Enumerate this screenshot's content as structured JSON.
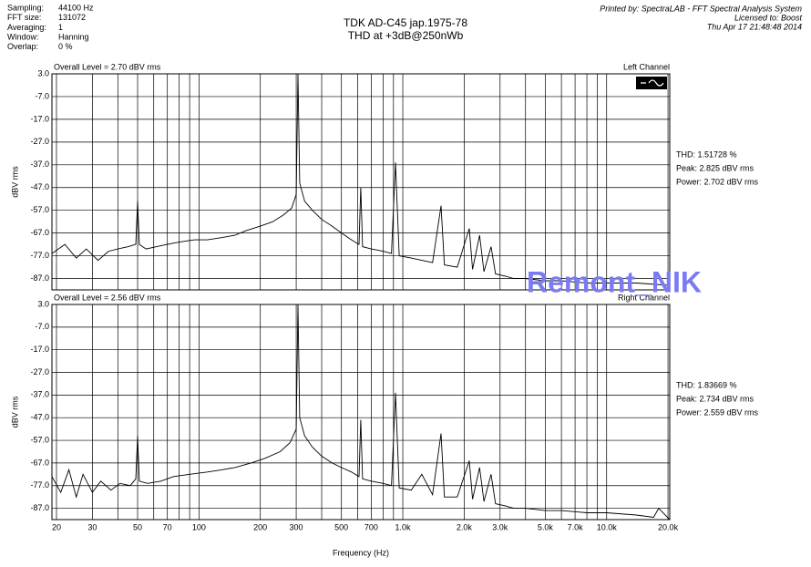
{
  "header": {
    "info": [
      [
        "Sampling:",
        "44100 Hz"
      ],
      [
        "FFT size:",
        "131072"
      ],
      [
        "Averaging:",
        "1"
      ],
      [
        "Window:",
        "Hanning"
      ],
      [
        "Overlap:",
        "0 %"
      ]
    ],
    "title": "TDK AD-C45 jap.1975-78",
    "subtitle": "THD at +3dB@250nWb",
    "printed_by": "Printed by: SpectraLAB - FFT Spectral Analysis System",
    "licensed_to": "Licensed to: Boost",
    "date": "Thu Apr 17 21:48:48 2014",
    "watermark": "Remont_NIK"
  },
  "chart_data": [
    {
      "type": "line",
      "overall_level": "Overall Level = 2.70 dBV rms",
      "channel": "Left Channel",
      "annotations": [
        "THD: 1.51728 %",
        "Peak: 2.825 dBV rms",
        "Power: 2.702 dBV rms"
      ],
      "ylabel": "dBV rms",
      "log_x": true,
      "grid": true,
      "color": "#000000",
      "xlim": [
        19,
        20400
      ],
      "ylim": [
        -92,
        3
      ],
      "xticks": [
        20,
        30,
        50,
        70,
        100,
        200,
        300,
        500,
        700,
        1000,
        2000,
        3000,
        5000,
        7000,
        10000,
        20000
      ],
      "xminor": [
        40,
        60,
        80,
        90,
        400,
        600,
        800,
        900,
        4000,
        6000,
        8000,
        9000
      ],
      "yticks": [
        {
          "value": 3,
          "label": "3.0"
        },
        {
          "value": -7,
          "label": "-7.0"
        },
        {
          "value": -17,
          "label": "-17.0"
        },
        {
          "value": -27,
          "label": "-27.0"
        },
        {
          "value": -37,
          "label": "-37.0"
        },
        {
          "value": -47,
          "label": "-47.0"
        },
        {
          "value": -57,
          "label": "-57.0"
        },
        {
          "value": -67,
          "label": "-67.0"
        },
        {
          "value": -77,
          "label": "-77.0"
        },
        {
          "value": -87,
          "label": "-87.0"
        }
      ],
      "x": [
        19,
        22,
        25,
        28,
        32,
        36,
        40,
        45,
        49,
        50,
        51,
        55,
        62,
        70,
        80,
        95,
        110,
        130,
        150,
        170,
        200,
        230,
        260,
        285,
        300,
        306,
        312,
        330,
        360,
        400,
        450,
        500,
        560,
        610,
        622,
        635,
        700,
        800,
        880,
        921,
        960,
        1100,
        1400,
        1540,
        1600,
        1850,
        2120,
        2200,
        2380,
        2500,
        2710,
        2850,
        3200,
        3500,
        4000,
        5000,
        6000,
        8000,
        10000,
        14000,
        20400
      ],
      "values": [
        -76,
        -72,
        -78,
        -74,
        -79,
        -75,
        -74,
        -73,
        -72,
        -53,
        -72,
        -74,
        -73,
        -72,
        -71,
        -70,
        -70,
        -69,
        -68,
        -66,
        -64,
        -62,
        -59,
        -56,
        -50,
        3,
        -45,
        -53,
        -57,
        -61,
        -64,
        -67,
        -70,
        -72,
        -47,
        -73,
        -74,
        -75,
        -76,
        -36,
        -77,
        -78,
        -80,
        -55,
        -81,
        -82,
        -65,
        -83,
        -68,
        -84,
        -73,
        -85,
        -86,
        -87,
        -87,
        -88,
        -88,
        -89,
        -89,
        -89,
        -90
      ]
    },
    {
      "type": "line",
      "overall_level": "Overall Level = 2.56 dBV rms",
      "channel": "Right Channel",
      "annotations": [
        "THD: 1.83669 %",
        "Peak: 2.734 dBV rms",
        "Power: 2.559 dBV rms"
      ],
      "ylabel": "dBV rms",
      "xlabel": "Frequency (Hz)",
      "log_x": true,
      "grid": true,
      "color": "#000000",
      "xlim": [
        19,
        20400
      ],
      "ylim": [
        -92,
        3
      ],
      "xticks": [
        20,
        30,
        50,
        70,
        100,
        200,
        300,
        500,
        700,
        {
          "value": 1000,
          "label": "1.0k"
        },
        {
          "value": 2000,
          "label": "2.0k"
        },
        {
          "value": 3000,
          "label": "3.0k"
        },
        {
          "value": 5000,
          "label": "5.0k"
        },
        {
          "value": 7000,
          "label": "7.0k"
        },
        {
          "value": 10000,
          "label": "10.0k"
        },
        {
          "value": 20000,
          "label": "20.0k"
        }
      ],
      "xminor": [
        40,
        60,
        80,
        90,
        400,
        600,
        800,
        900,
        4000,
        6000,
        8000,
        9000
      ],
      "yticks": [
        {
          "value": 3,
          "label": "3.0"
        },
        {
          "value": -7,
          "label": "-7.0"
        },
        {
          "value": -17,
          "label": "-17.0"
        },
        {
          "value": -27,
          "label": "-27.0"
        },
        {
          "value": -37,
          "label": "-37.0"
        },
        {
          "value": -47,
          "label": "-47.0"
        },
        {
          "value": -57,
          "label": "-57.0"
        },
        {
          "value": -67,
          "label": "-67.0"
        },
        {
          "value": -77,
          "label": "-77.0"
        },
        {
          "value": -87,
          "label": "-87.0"
        }
      ],
      "x": [
        19,
        21,
        23,
        25,
        27,
        30,
        33,
        37,
        41,
        46,
        49,
        50,
        51,
        56,
        65,
        75,
        90,
        110,
        130,
        150,
        180,
        210,
        250,
        280,
        300,
        306,
        312,
        330,
        360,
        400,
        450,
        500,
        560,
        610,
        622,
        635,
        700,
        800,
        880,
        921,
        960,
        1100,
        1240,
        1400,
        1540,
        1600,
        1850,
        2120,
        2200,
        2380,
        2500,
        2710,
        2850,
        3200,
        3500,
        4000,
        5000,
        6000,
        8000,
        10000,
        14000,
        17000,
        18000,
        20400
      ],
      "values": [
        -73,
        -80,
        -70,
        -82,
        -72,
        -80,
        -75,
        -79,
        -76,
        -77,
        -74,
        -55,
        -75,
        -76,
        -75,
        -73,
        -72,
        -71,
        -70,
        -69,
        -67,
        -65,
        -62,
        -58,
        -52,
        3,
        -47,
        -55,
        -60,
        -64,
        -67,
        -69,
        -71,
        -73,
        -48,
        -74,
        -75,
        -76,
        -77,
        -36,
        -78,
        -79,
        -72,
        -81,
        -54,
        -82,
        -82,
        -66,
        -83,
        -69,
        -84,
        -72,
        -85,
        -86,
        -87,
        -87,
        -88,
        -88,
        -89,
        -89,
        -90,
        -91,
        -87,
        -92
      ]
    }
  ]
}
